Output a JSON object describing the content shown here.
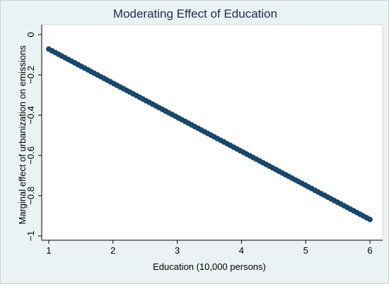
{
  "chart_data": {
    "type": "scatter",
    "title": "Moderating Effect of Education",
    "xlabel": "Education (10,000 persons)",
    "ylabel": "Marginal effect of urbanization on emissions",
    "xlim": [
      1,
      6
    ],
    "ylim": [
      -1,
      0
    ],
    "xticks": [
      "1",
      "2",
      "3",
      "4",
      "5",
      "6"
    ],
    "yticks": [
      "0",
      "−0.2",
      "−0.4",
      "−0.6",
      "−0.8",
      "−1"
    ],
    "grid": false,
    "legend": "none",
    "connected": true,
    "series": [
      {
        "color": "#1a4a6e",
        "x_start": 1,
        "x_end": 6,
        "y_start": -0.072,
        "y_end": -0.918,
        "n_points": 100
      }
    ]
  }
}
